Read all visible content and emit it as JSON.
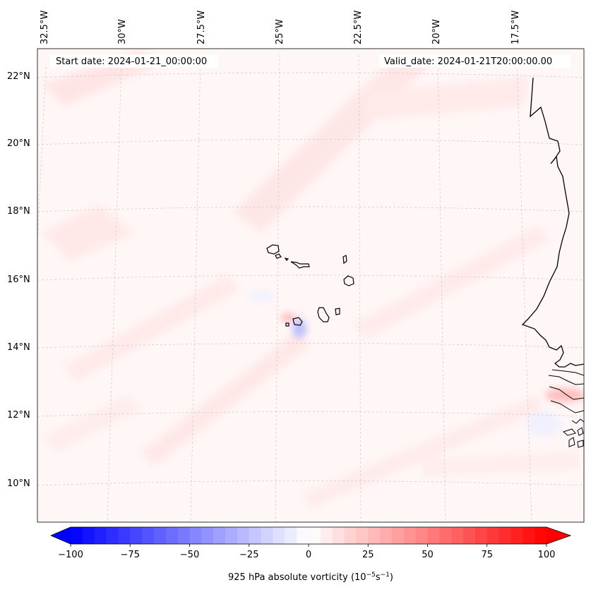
{
  "header": {
    "start_label": "Start date: 2024-01-21_00:00:00",
    "valid_label": "Valid_date: 2024-01-21T20:00:00.00"
  },
  "map": {
    "lon_labels": [
      "32.5°W",
      "30°W",
      "27.5°W",
      "25°W",
      "22.5°W",
      "20°W",
      "17.5°W"
    ],
    "lat_labels": [
      "22°N",
      "20°N",
      "18°N",
      "16°N",
      "14°N",
      "12°N",
      "10°N"
    ],
    "field_name": "925 hPa absolute vorticity"
  },
  "colorbar": {
    "tick_labels": [
      "−100",
      "−75",
      "−50",
      "−25",
      "0",
      "25",
      "50",
      "75",
      "100"
    ],
    "tick_values": [
      -100,
      -75,
      -50,
      -25,
      0,
      25,
      50,
      75,
      100
    ],
    "vmin": -100,
    "vmax": 100,
    "levels": 40,
    "label_prefix": "925 hPa absolute vorticity (10",
    "label_exp1": "−5",
    "label_mid": "s",
    "label_exp2": "−1",
    "label_suffix": ")",
    "colors": {
      "min": "#0000ff",
      "mid": "#ffffff",
      "max": "#ff0000"
    }
  }
}
